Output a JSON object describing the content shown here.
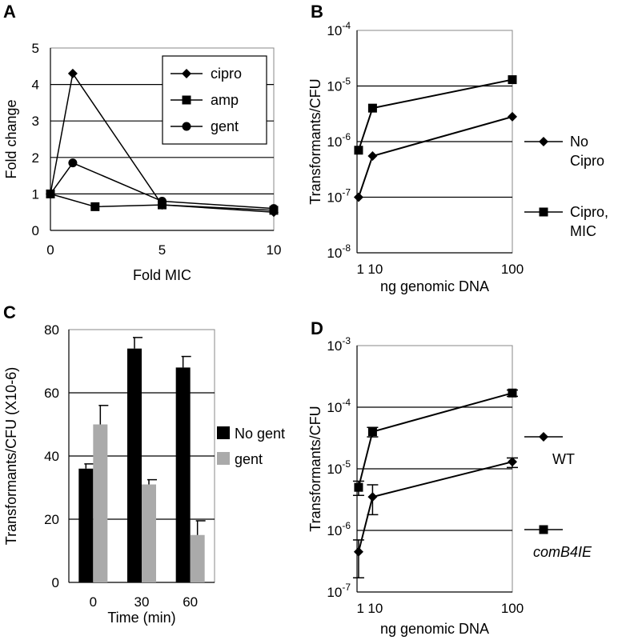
{
  "chart_data": [
    {
      "panel": "A",
      "type": "line",
      "xlabel": "Fold MIC",
      "ylabel": "Fold change",
      "xlim": [
        0,
        10
      ],
      "ylim": [
        0,
        5
      ],
      "x_ticks": [
        "0",
        "5",
        "10"
      ],
      "y_ticks": [
        "0",
        "1",
        "2",
        "3",
        "4",
        "5"
      ],
      "grid": "horizontal",
      "legend_position": "top-right",
      "series": [
        {
          "name": "cipro",
          "marker": "diamond",
          "points": [
            [
              0,
              1.0
            ],
            [
              1,
              4.3
            ],
            [
              5,
              0.7
            ],
            [
              10,
              0.5
            ]
          ]
        },
        {
          "name": "amp",
          "marker": "square",
          "points": [
            [
              0,
              1.0
            ],
            [
              2,
              0.65
            ],
            [
              5,
              0.7
            ],
            [
              10,
              0.55
            ]
          ]
        },
        {
          "name": "gent",
          "marker": "circle",
          "points": [
            [
              0,
              1.0
            ],
            [
              1,
              1.85
            ],
            [
              5,
              0.8
            ],
            [
              10,
              0.6
            ]
          ]
        }
      ]
    },
    {
      "panel": "B",
      "type": "line",
      "xlabel": "ng genomic DNA",
      "ylabel": "Transformants/CFU",
      "xlim": [
        0,
        100
      ],
      "ylim": [
        1e-08,
        0.0001
      ],
      "y_scale": "log",
      "x_ticks": [
        "1",
        "10",
        "100"
      ],
      "y_tick_exponents": [
        "-8",
        "-7",
        "-6",
        "-5",
        "-4"
      ],
      "grid": "horizontal",
      "legend_position": "right",
      "series": [
        {
          "name": "No Cipro",
          "legend_lines": [
            "No",
            "Cipro"
          ],
          "marker": "diamond",
          "points": [
            [
              1,
              1e-07
            ],
            [
              10,
              5.5e-07
            ],
            [
              100,
              2.8e-06
            ]
          ]
        },
        {
          "name": "Cipro, MIC",
          "legend_lines": [
            "Cipro,",
            "MIC"
          ],
          "marker": "square",
          "points": [
            [
              1,
              7e-07
            ],
            [
              10,
              4e-06
            ],
            [
              100,
              1.3e-05
            ]
          ]
        }
      ]
    },
    {
      "panel": "C",
      "type": "bar",
      "xlabel": "Time (min)",
      "ylabel": "Transformants/CFU (X10-6)",
      "categories": [
        "0",
        "30",
        "60"
      ],
      "ylim": [
        0,
        80
      ],
      "y_ticks": [
        "0",
        "20",
        "40",
        "60",
        "80"
      ],
      "grid": "horizontal",
      "legend_position": "right",
      "series": [
        {
          "name": "No gent",
          "color": "#000000",
          "values": [
            36,
            74,
            68
          ],
          "errors": [
            1.5,
            3.5,
            3.5
          ]
        },
        {
          "name": "gent",
          "color": "#aaaaaa",
          "values": [
            50,
            31,
            15
          ],
          "errors": [
            6,
            1.5,
            4.5
          ]
        }
      ]
    },
    {
      "panel": "D",
      "type": "line",
      "xlabel": "ng genomic DNA",
      "ylabel": "Transformants/CFU",
      "xlim": [
        0,
        100
      ],
      "ylim": [
        1e-07,
        0.001
      ],
      "y_scale": "log",
      "x_ticks": [
        "1",
        "10",
        "100"
      ],
      "y_tick_exponents": [
        "-7",
        "-6",
        "-5",
        "-4",
        "-3"
      ],
      "grid": "horizontal",
      "legend_position": "right",
      "series": [
        {
          "name": "WT",
          "marker": "diamond",
          "points": [
            [
              1,
              4.5e-07
            ],
            [
              10,
              3.5e-06
            ],
            [
              100,
              1.3e-05
            ]
          ],
          "err_lo": [
            1.7e-07,
            1.8e-06,
            1.05e-05
          ],
          "err_hi": [
            7e-07,
            5.5e-06,
            1.5e-05
          ]
        },
        {
          "name": "comB4IE",
          "marker": "square",
          "points": [
            [
              1,
              5e-06
            ],
            [
              10,
              4e-05
            ],
            [
              100,
              0.00017
            ]
          ],
          "err_lo": [
            3.7e-06,
            3.3e-05,
            0.00015
          ],
          "err_hi": [
            6.3e-06,
            4.7e-05,
            0.00019
          ]
        }
      ]
    }
  ]
}
